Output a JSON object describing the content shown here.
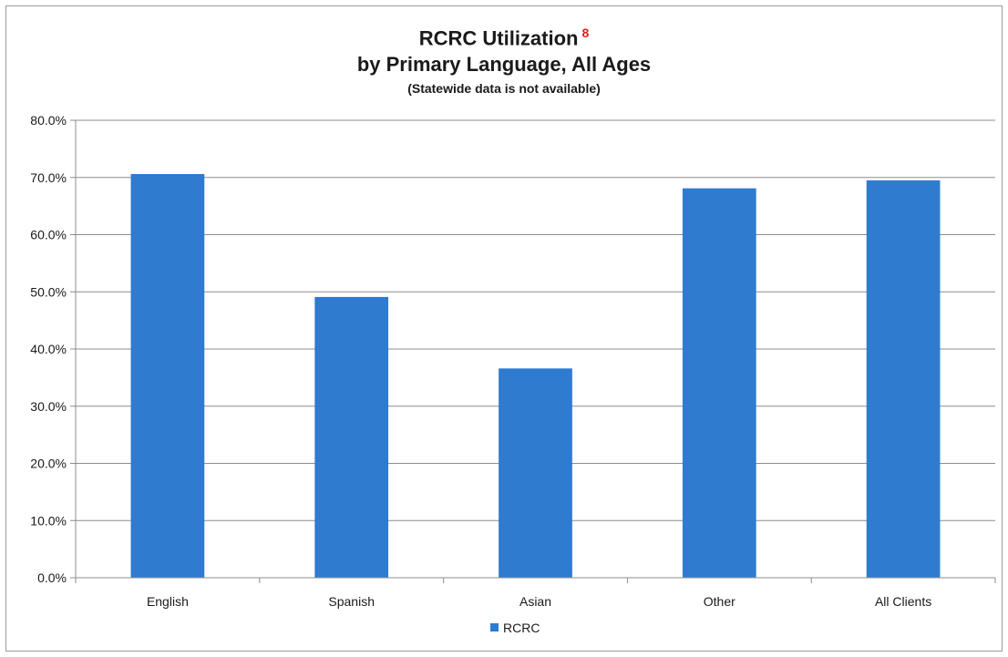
{
  "chart_data": {
    "type": "bar",
    "title": "RCRC Utilization",
    "title_superscript": "8",
    "subtitle_line": "by Primary Language, All Ages",
    "note": "(Statewide data is not available)",
    "categories": [
      "English",
      "Spanish",
      "Asian",
      "Other",
      "All Clients"
    ],
    "series": [
      {
        "name": "RCRC",
        "values": [
          70.6,
          49.1,
          36.6,
          68.1,
          69.5
        ],
        "color": "#2e7bd0"
      }
    ],
    "ylim": [
      0,
      80
    ],
    "yticks": [
      0,
      10,
      20,
      30,
      40,
      50,
      60,
      70,
      80
    ],
    "ytick_labels": [
      "0.0%",
      "10.0%",
      "20.0%",
      "30.0%",
      "40.0%",
      "50.0%",
      "60.0%",
      "70.0%",
      "80.0%"
    ],
    "grid": true,
    "legend": "bottom"
  }
}
